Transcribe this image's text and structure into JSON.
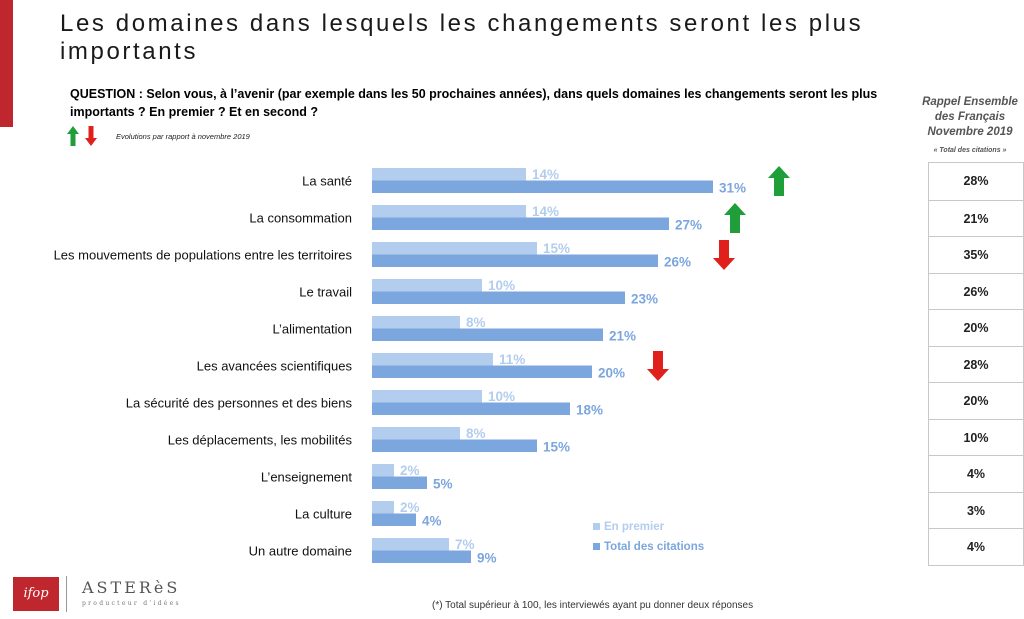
{
  "header": {
    "title": "Les domaines dans lesquels les changements seront les plus importants",
    "question": "QUESTION : Selon vous, à l’avenir (par exemple dans les 50 prochaines années), dans quels domaines les changements seront les plus importants ? En premier ? Et en second ?",
    "evolution_note": "Evolutions par rapport à novembre 2019"
  },
  "recall": {
    "heading": "Rappel Ensemble des Français Novembre 2019",
    "subheading": "« Total des citations »",
    "values": [
      "28%",
      "21%",
      "35%",
      "26%",
      "20%",
      "28%",
      "20%",
      "10%",
      "4%",
      "3%",
      "4%"
    ]
  },
  "chart_data": {
    "type": "bar",
    "orientation": "horizontal",
    "categories": [
      "La santé",
      "La consommation",
      "Les mouvements de populations entre les territoires",
      "Le travail",
      "L’alimentation",
      "Les avancées scientifiques",
      "La sécurité des personnes et des biens",
      "Les déplacements, les mobilités",
      "L’enseignement",
      "La culture",
      "Un autre domaine"
    ],
    "series": [
      {
        "name": "En premier",
        "values": [
          14,
          14,
          15,
          10,
          8,
          11,
          10,
          8,
          2,
          2,
          7
        ],
        "color": "#b3cdee"
      },
      {
        "name": "Total des citations",
        "values": [
          31,
          27,
          26,
          23,
          21,
          20,
          18,
          15,
          5,
          4,
          9
        ],
        "color": "#7ca6de"
      }
    ],
    "evolution_arrows": [
      "up",
      "up",
      "down",
      "none",
      "none",
      "down",
      "none",
      "none",
      "none",
      "none",
      "none"
    ],
    "value_suffix": "%",
    "arrow_colors": {
      "up": "#1f9e3a",
      "down": "#e0201b"
    }
  },
  "footer": {
    "footnote": "(*) Total supérieur à 100, les interviewés ayant pu donner deux réponses",
    "logo_ifop": "ifop",
    "logo_asteres": "ASTERèS",
    "logo_asteres_tagline": "producteur d'idées"
  }
}
